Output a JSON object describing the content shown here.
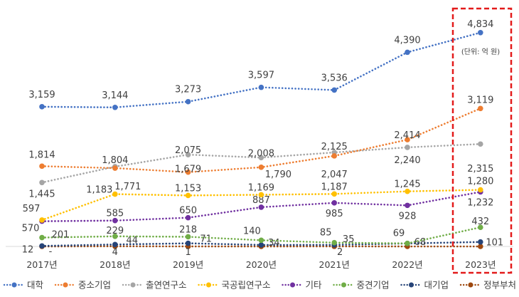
{
  "chart_data": {
    "type": "line",
    "title": "",
    "unit_note": "(단위: 억 원)",
    "xlabel": "",
    "ylabel": "",
    "ylim": [
      0,
      5000
    ],
    "grid": false,
    "legend_position": "bottom",
    "highlight": "2023년",
    "categories": [
      "2017년",
      "2018년",
      "2019년",
      "2020년",
      "2021년",
      "2022년",
      "2023년"
    ],
    "series": [
      {
        "name": "대학",
        "color": "#4472C4",
        "values": [
          3159,
          3144,
          3273,
          3597,
          3536,
          4390,
          4834
        ],
        "labels": [
          "3,159",
          "3,144",
          "3,273",
          "3,597",
          "3,536",
          "4,390",
          "4,834"
        ]
      },
      {
        "name": "중소기업",
        "color": "#ED7D31",
        "values": [
          1814,
          1771,
          1679,
          1790,
          2047,
          2414,
          3119
        ],
        "labels": [
          "1,814",
          "1,771",
          "1,679",
          "1,790",
          "2,047",
          "2,414",
          "3,119"
        ]
      },
      {
        "name": "출연연구소",
        "color": "#A5A5A5",
        "values": [
          1445,
          1804,
          2075,
          2008,
          2125,
          2240,
          2315
        ],
        "labels": [
          "1,445",
          "1,804",
          "2,075",
          "2,008",
          "2,125",
          "2,240",
          "2,315"
        ]
      },
      {
        "name": "국공립연구소",
        "color": "#FFC000",
        "values": [
          597,
          1183,
          1153,
          1169,
          1187,
          1245,
          1280
        ],
        "labels": [
          "597",
          "1,183",
          "1,153",
          "1,169",
          "1,187",
          "1,245",
          "1,280"
        ]
      },
      {
        "name": "기타",
        "color": "#7030A0",
        "values": [
          570,
          585,
          650,
          887,
          985,
          928,
          1232
        ],
        "labels": [
          "570",
          "585",
          "650",
          "887",
          "985",
          "928",
          "1,232"
        ]
      },
      {
        "name": "중견기업",
        "color": "#70AD47",
        "values": [
          201,
          229,
          218,
          140,
          85,
          69,
          432
        ],
        "labels": [
          "201",
          "229",
          "218",
          "140",
          "85",
          "69",
          "432"
        ]
      },
      {
        "name": "대기업",
        "color": "#264478",
        "values": [
          12,
          44,
          71,
          34,
          35,
          68,
          101
        ],
        "labels": [
          "12",
          "44",
          "71",
          "34",
          "35",
          "68",
          "101"
        ]
      },
      {
        "name": "정부부처",
        "color": "#9E480E",
        "values": [
          0,
          4,
          1,
          0,
          2,
          0,
          0
        ],
        "labels": [
          "-",
          "4",
          "1",
          "",
          "2",
          "",
          ""
        ]
      }
    ]
  }
}
